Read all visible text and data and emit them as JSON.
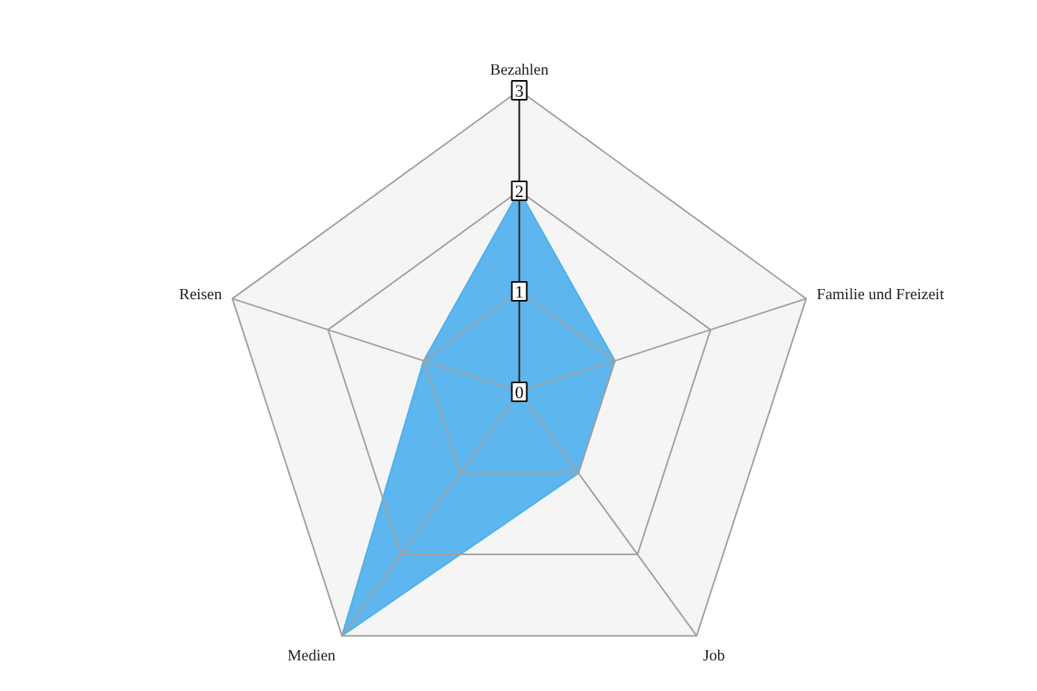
{
  "chart_data": {
    "type": "radar",
    "categories": [
      "Bezahlen",
      "Familie und Freizeit",
      "Job",
      "Medien",
      "Reisen"
    ],
    "series": [
      {
        "color": "#4fb0ec",
        "values": [
          2,
          1,
          1,
          3,
          1
        ]
      }
    ],
    "ylim": [
      0,
      3
    ],
    "yticks": [
      0,
      1,
      2,
      3
    ],
    "grid": true
  }
}
